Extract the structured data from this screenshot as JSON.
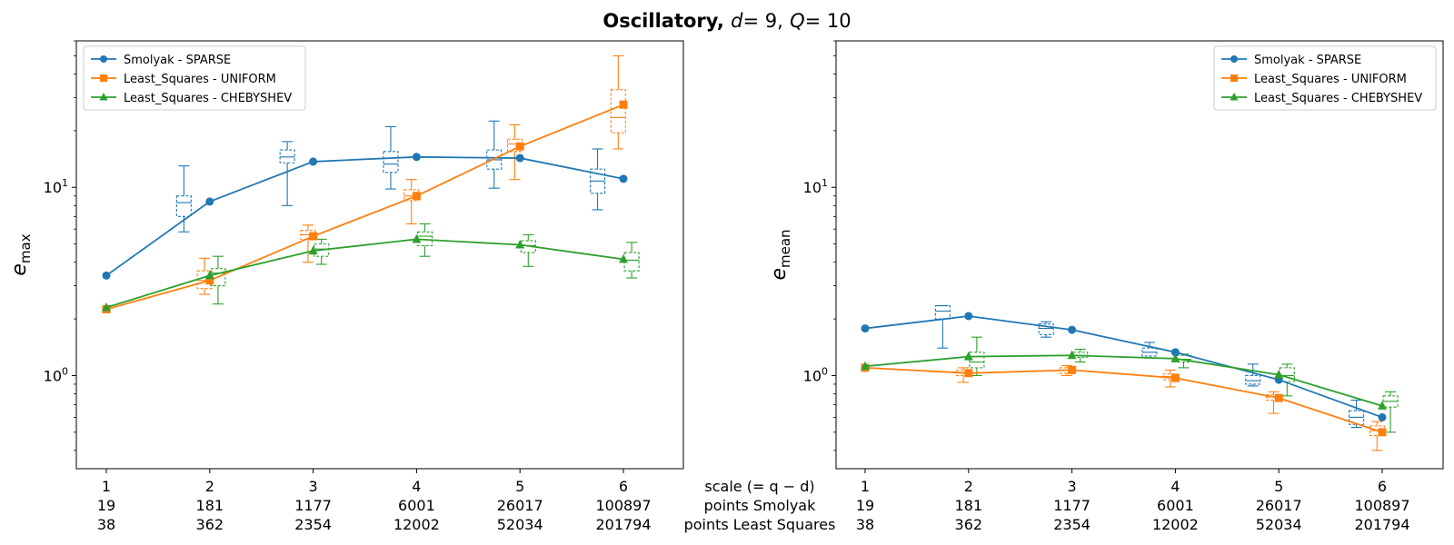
{
  "title": {
    "prefix": "Oscillatory,",
    "var1": "d",
    "val1": "= 9,",
    "var2": "Q",
    "val2": "= 10"
  },
  "center_labels": {
    "scale": "scale (= q − d)",
    "points_smolyak": "points Smolyak",
    "points_ls": "points Least Squares"
  },
  "colors": {
    "Smolyak - SPARSE": "#1f77b4",
    "Least_Squares - UNIFORM": "#ff7f0e",
    "Least_Squares - CHEBYSHEV": "#2ca02c"
  },
  "chart_data": [
    {
      "type": "line",
      "ylabel_base": "e",
      "ylabel_sub": "max",
      "yscale": "log",
      "ylim": [
        0.32,
        60
      ],
      "y_ticks": [
        {
          "value": 1,
          "base": "10",
          "exp": "0"
        },
        {
          "value": 10,
          "base": "10",
          "exp": "1"
        }
      ],
      "legend_position": "top-left",
      "categories": [
        "1",
        "2",
        "3",
        "4",
        "5",
        "6"
      ],
      "points_smolyak": [
        "19",
        "181",
        "1177",
        "6001",
        "26017",
        "100897"
      ],
      "points_ls": [
        "38",
        "362",
        "2354",
        "12002",
        "52034",
        "201794"
      ],
      "series": [
        {
          "name": "Smolyak - SPARSE",
          "marker": "circle",
          "values": [
            3.4,
            8.4,
            13.7,
            14.5,
            14.3,
            11.1
          ],
          "boxes": [
            {
              "x": 1.75,
              "q1": 7.0,
              "med": 8.3,
              "q3": 9.0,
              "lo": 5.8,
              "hi": 13.0
            },
            {
              "x": 2.75,
              "q1": 13.5,
              "med": 14.5,
              "q3": 15.8,
              "lo": 8.0,
              "hi": 17.5
            },
            {
              "x": 3.75,
              "q1": 12.0,
              "med": 13.3,
              "q3": 15.5,
              "lo": 9.8,
              "hi": 21.0
            },
            {
              "x": 4.75,
              "q1": 12.5,
              "med": 14.0,
              "q3": 15.8,
              "lo": 9.9,
              "hi": 22.5
            },
            {
              "x": 5.75,
              "q1": 9.3,
              "med": 10.8,
              "q3": 12.5,
              "lo": 7.6,
              "hi": 16.0
            }
          ]
        },
        {
          "name": "Least_Squares - UNIFORM",
          "marker": "square",
          "values": [
            2.25,
            3.2,
            5.5,
            9.0,
            16.5,
            27.5
          ],
          "boxes": [
            {
              "x": 1.95,
              "q1": 2.9,
              "med": 3.2,
              "q3": 3.6,
              "lo": 2.7,
              "hi": 4.2
            },
            {
              "x": 2.95,
              "q1": 5.3,
              "med": 5.6,
              "q3": 5.9,
              "lo": 4.0,
              "hi": 6.3
            },
            {
              "x": 3.95,
              "q1": 8.5,
              "med": 9.0,
              "q3": 9.7,
              "lo": 6.4,
              "hi": 11.0
            },
            {
              "x": 4.95,
              "q1": 15.5,
              "med": 17.0,
              "q3": 18.0,
              "lo": 11.0,
              "hi": 21.5
            },
            {
              "x": 5.95,
              "q1": 19.5,
              "med": 23.5,
              "q3": 33.0,
              "lo": 16.0,
              "hi": 50.0
            }
          ]
        },
        {
          "name": "Least_Squares - CHEBYSHEV",
          "marker": "triangle",
          "values": [
            2.3,
            3.4,
            4.6,
            5.3,
            4.95,
            4.15
          ],
          "boxes": [
            {
              "x": 2.08,
              "q1": 3.0,
              "med": 3.5,
              "q3": 3.7,
              "lo": 2.4,
              "hi": 4.3
            },
            {
              "x": 3.08,
              "q1": 4.3,
              "med": 4.7,
              "q3": 5.0,
              "lo": 3.9,
              "hi": 5.3
            },
            {
              "x": 4.08,
              "q1": 4.9,
              "med": 5.5,
              "q3": 5.8,
              "lo": 4.3,
              "hi": 6.4
            },
            {
              "x": 5.08,
              "q1": 4.5,
              "med": 4.9,
              "q3": 5.2,
              "lo": 3.8,
              "hi": 5.6
            },
            {
              "x": 6.08,
              "q1": 3.6,
              "med": 4.1,
              "q3": 4.5,
              "lo": 3.3,
              "hi": 5.1
            }
          ]
        }
      ]
    },
    {
      "type": "line",
      "ylabel_base": "e",
      "ylabel_sub": "mean",
      "yscale": "log",
      "ylim": [
        0.32,
        60
      ],
      "y_ticks": [
        {
          "value": 1,
          "base": "10",
          "exp": "0"
        },
        {
          "value": 10,
          "base": "10",
          "exp": "1"
        }
      ],
      "legend_position": "top-right",
      "categories": [
        "1",
        "2",
        "3",
        "4",
        "5",
        "6"
      ],
      "points_smolyak": [
        "19",
        "181",
        "1177",
        "6001",
        "26017",
        "100897"
      ],
      "points_ls": [
        "38",
        "362",
        "2354",
        "12002",
        "52034",
        "201794"
      ],
      "series": [
        {
          "name": "Smolyak - SPARSE",
          "marker": "circle",
          "values": [
            1.78,
            2.07,
            1.75,
            1.33,
            0.95,
            0.6
          ],
          "boxes": [
            {
              "x": 1.75,
              "q1": 2.0,
              "med": 2.2,
              "q3": 2.35,
              "lo": 1.4,
              "hi": 2.35
            },
            {
              "x": 2.75,
              "q1": 1.65,
              "med": 1.78,
              "q3": 1.88,
              "lo": 1.6,
              "hi": 1.93
            },
            {
              "x": 3.75,
              "q1": 1.27,
              "med": 1.33,
              "q3": 1.4,
              "lo": 1.24,
              "hi": 1.5
            },
            {
              "x": 4.75,
              "q1": 0.9,
              "med": 0.94,
              "q3": 1.0,
              "lo": 0.88,
              "hi": 1.15
            },
            {
              "x": 5.75,
              "q1": 0.55,
              "med": 0.6,
              "q3": 0.65,
              "lo": 0.53,
              "hi": 0.74
            }
          ]
        },
        {
          "name": "Least_Squares - UNIFORM",
          "marker": "square",
          "values": [
            1.1,
            1.03,
            1.07,
            0.97,
            0.76,
            0.5
          ],
          "boxes": [
            {
              "x": 1.95,
              "q1": 1.0,
              "med": 1.04,
              "q3": 1.07,
              "lo": 0.92,
              "hi": 1.1
            },
            {
              "x": 2.95,
              "q1": 1.03,
              "med": 1.07,
              "q3": 1.1,
              "lo": 1.0,
              "hi": 1.13
            },
            {
              "x": 3.95,
              "q1": 0.95,
              "med": 0.99,
              "q3": 1.02,
              "lo": 0.87,
              "hi": 1.07
            },
            {
              "x": 4.95,
              "q1": 0.74,
              "med": 0.77,
              "q3": 0.79,
              "lo": 0.63,
              "hi": 0.82
            },
            {
              "x": 5.95,
              "q1": 0.48,
              "med": 0.51,
              "q3": 0.54,
              "lo": 0.4,
              "hi": 0.57
            }
          ]
        },
        {
          "name": "Least_Squares - CHEBYSHEV",
          "marker": "triangle",
          "values": [
            1.12,
            1.26,
            1.28,
            1.23,
            1.01,
            0.69
          ],
          "boxes": [
            {
              "x": 2.08,
              "q1": 1.1,
              "med": 1.18,
              "q3": 1.33,
              "lo": 1.0,
              "hi": 1.6
            },
            {
              "x": 3.08,
              "q1": 1.25,
              "med": 1.28,
              "q3": 1.33,
              "lo": 1.18,
              "hi": 1.38
            },
            {
              "x": 4.08,
              "q1": 1.18,
              "med": 1.22,
              "q3": 1.28,
              "lo": 1.1,
              "hi": 1.3
            },
            {
              "x": 5.08,
              "q1": 0.93,
              "med": 1.0,
              "q3": 1.1,
              "lo": 0.78,
              "hi": 1.15
            },
            {
              "x": 6.08,
              "q1": 0.68,
              "med": 0.73,
              "q3": 0.78,
              "lo": 0.5,
              "hi": 0.82
            }
          ]
        }
      ]
    }
  ]
}
